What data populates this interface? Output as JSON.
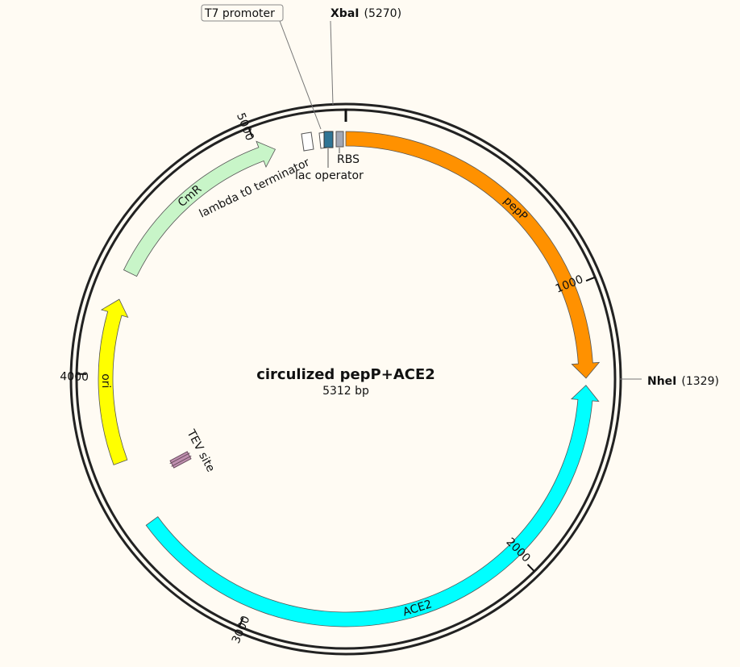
{
  "plasmid": {
    "name": "circulized pepP+ACE2",
    "size_label": "5312 bp",
    "length_bp": 5312
  },
  "ticks": [
    {
      "bp": 1000,
      "label": "1000"
    },
    {
      "bp": 2000,
      "label": "2000"
    },
    {
      "bp": 3000,
      "label": "3000"
    },
    {
      "bp": 4000,
      "label": "4000"
    },
    {
      "bp": 5000,
      "label": "5000"
    }
  ],
  "restriction_sites": [
    {
      "name": "XbaI",
      "position": "(5270)",
      "bp": 5270
    },
    {
      "name": "NheI",
      "position": "(1329)",
      "bp": 1329
    }
  ],
  "features": [
    {
      "id": "pepP",
      "label": "pepP",
      "start": 0,
      "end": 1325,
      "direction": "forward",
      "color": "#ff9100"
    },
    {
      "id": "ACE2",
      "label": "ACE2",
      "start": 1350,
      "end": 3450,
      "direction": "reverse",
      "color": "#00ffff"
    },
    {
      "id": "ori",
      "label": "ori",
      "start": 3685,
      "end": 4270,
      "direction": "forward",
      "color": "#ffff00"
    },
    {
      "id": "CmR",
      "label": "CmR",
      "start": 4370,
      "end": 5060,
      "direction": "forward",
      "color": "#c8f5c8"
    }
  ],
  "small_features": [
    {
      "id": "lambda-t0-terminator",
      "label": "lambda t0 terminator",
      "color": "#ffffff"
    },
    {
      "id": "t7-promoter",
      "label": "T7 promoter",
      "color": "#ffffff"
    },
    {
      "id": "lac-operator",
      "label": "lac operator",
      "color": "#2f7595"
    },
    {
      "id": "rbs",
      "label": "RBS",
      "color": "#a2a8b5"
    },
    {
      "id": "tev-site",
      "label": "TEV site",
      "color": "#c090b0"
    }
  ]
}
